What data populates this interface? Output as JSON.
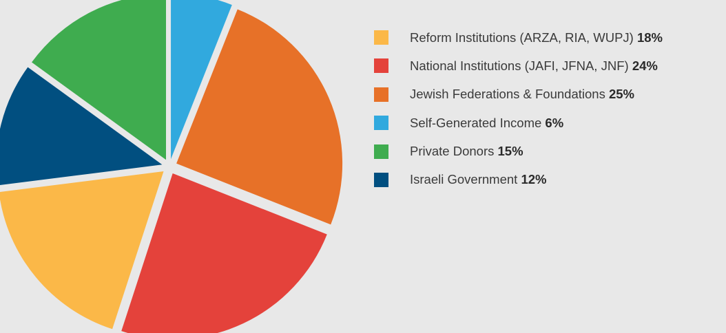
{
  "chart_data": {
    "type": "pie",
    "title": "",
    "start_angle_deg": 0,
    "direction": "clockwise",
    "exploded": true,
    "slices": [
      {
        "label": "Self-Generated Income",
        "value": 6,
        "value_text": "6%",
        "color": "#31a9de"
      },
      {
        "label": "Jewish Federations & Foundations",
        "value": 25,
        "value_text": "25%",
        "color": "#e77128"
      },
      {
        "label": "National Institutions (JAFI, JFNA, JNF)",
        "value": 24,
        "value_text": "24%",
        "color": "#e4423b"
      },
      {
        "label": "Reform Institutions (ARZA, RIA, WUPJ)",
        "value": 18,
        "value_text": "18%",
        "color": "#fbb848"
      },
      {
        "label": "Israeli Government",
        "value": 12,
        "value_text": "12%",
        "color": "#014f80"
      },
      {
        "label": "Private Donors",
        "value": 15,
        "value_text": "15%",
        "color": "#3fac4f"
      }
    ],
    "legend": {
      "position": "right",
      "order": [
        3,
        2,
        1,
        0,
        5,
        4
      ]
    }
  }
}
